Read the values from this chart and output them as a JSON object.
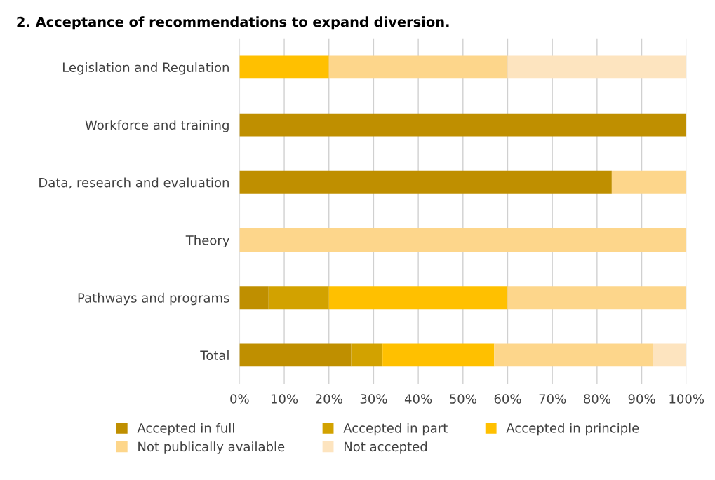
{
  "chart_data": {
    "type": "bar",
    "orientation": "horizontal",
    "stacked": true,
    "title": "2. Acceptance of recommendations to expand diversion.",
    "categories": [
      "Legislation and Regulation",
      "Workforce and training",
      "Data, research and evaluation",
      "Theory",
      "Pathways and programs",
      "Total"
    ],
    "series": [
      {
        "name": "Accepted in full",
        "color": "#bf8f00",
        "values": [
          0,
          100,
          83.3,
          0,
          6.5,
          25
        ]
      },
      {
        "name": "Accepted in part",
        "color": "#d2a200",
        "values": [
          0,
          0,
          0,
          0,
          13.5,
          7
        ]
      },
      {
        "name": "Accepted in principle",
        "color": "#ffc000",
        "values": [
          20,
          0,
          0,
          0,
          40,
          25
        ]
      },
      {
        "name": "Not publically available",
        "color": "#fdd68b",
        "values": [
          40,
          0,
          16.7,
          100,
          40,
          35.5
        ]
      },
      {
        "name": "Not accepted",
        "color": "#fde4bf",
        "values": [
          40,
          0,
          0,
          0,
          0,
          7.5
        ]
      }
    ],
    "xlim": [
      0,
      100
    ],
    "xticks": [
      {
        "value": 0,
        "label": "0%"
      },
      {
        "value": 10,
        "label": "10%"
      },
      {
        "value": 20,
        "label": "20%"
      },
      {
        "value": 30,
        "label": "30%"
      },
      {
        "value": 40,
        "label": "40%"
      },
      {
        "value": 50,
        "label": "50%"
      },
      {
        "value": 60,
        "label": "60%"
      },
      {
        "value": 70,
        "label": "70%"
      },
      {
        "value": 80,
        "label": "80%"
      },
      {
        "value": 90,
        "label": "90%"
      },
      {
        "value": 100,
        "label": "100%"
      }
    ],
    "grid": "x",
    "legend": "bottom"
  }
}
